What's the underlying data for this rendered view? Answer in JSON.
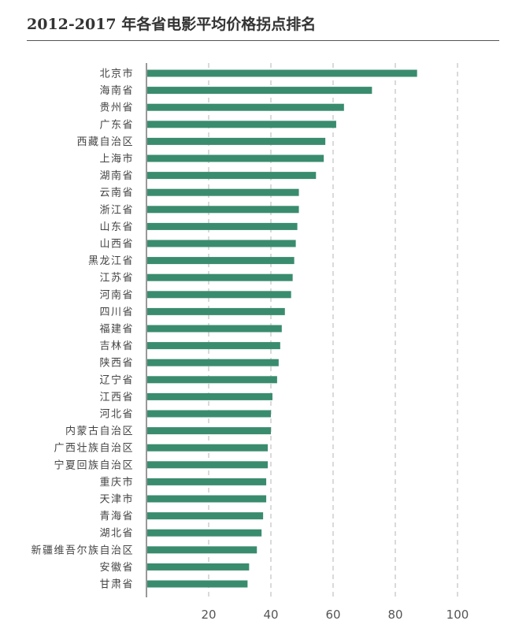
{
  "colors": {
    "bar": "#3a8c6e",
    "grid": "#b5b5b5",
    "axis": "#333333",
    "text": "#444444"
  },
  "chart_data": {
    "type": "bar",
    "orientation": "horizontal",
    "title": "2012-2017 年各省电影平均价格拐点排名",
    "xlabel": "",
    "ylabel": "",
    "xlim": [
      0,
      100
    ],
    "x_ticks": [
      20,
      40,
      60,
      80,
      100
    ],
    "grid": "vertical dashed",
    "categories": [
      "北京市",
      "海南省",
      "贵州省",
      "广东省",
      "西藏自治区",
      "上海市",
      "湖南省",
      "云南省",
      "浙江省",
      "山东省",
      "山西省",
      "黑龙江省",
      "江苏省",
      "河南省",
      "四川省",
      "福建省",
      "吉林省",
      "陕西省",
      "辽宁省",
      "江西省",
      "河北省",
      "内蒙古自治区",
      "广西壮族自治区",
      "宁夏回族自治区",
      "重庆市",
      "天津市",
      "青海省",
      "湖北省",
      "新疆维吾尔族自治区",
      "安徽省",
      "甘肃省"
    ],
    "values": [
      87,
      72.5,
      63.5,
      61,
      57.5,
      57,
      54.5,
      49,
      49,
      48.5,
      48,
      47.5,
      47,
      46.5,
      44.5,
      43.5,
      43,
      42.5,
      42,
      40.5,
      40,
      40,
      39,
      39,
      38.5,
      38.5,
      37.5,
      37,
      35.5,
      33,
      32.5
    ]
  }
}
